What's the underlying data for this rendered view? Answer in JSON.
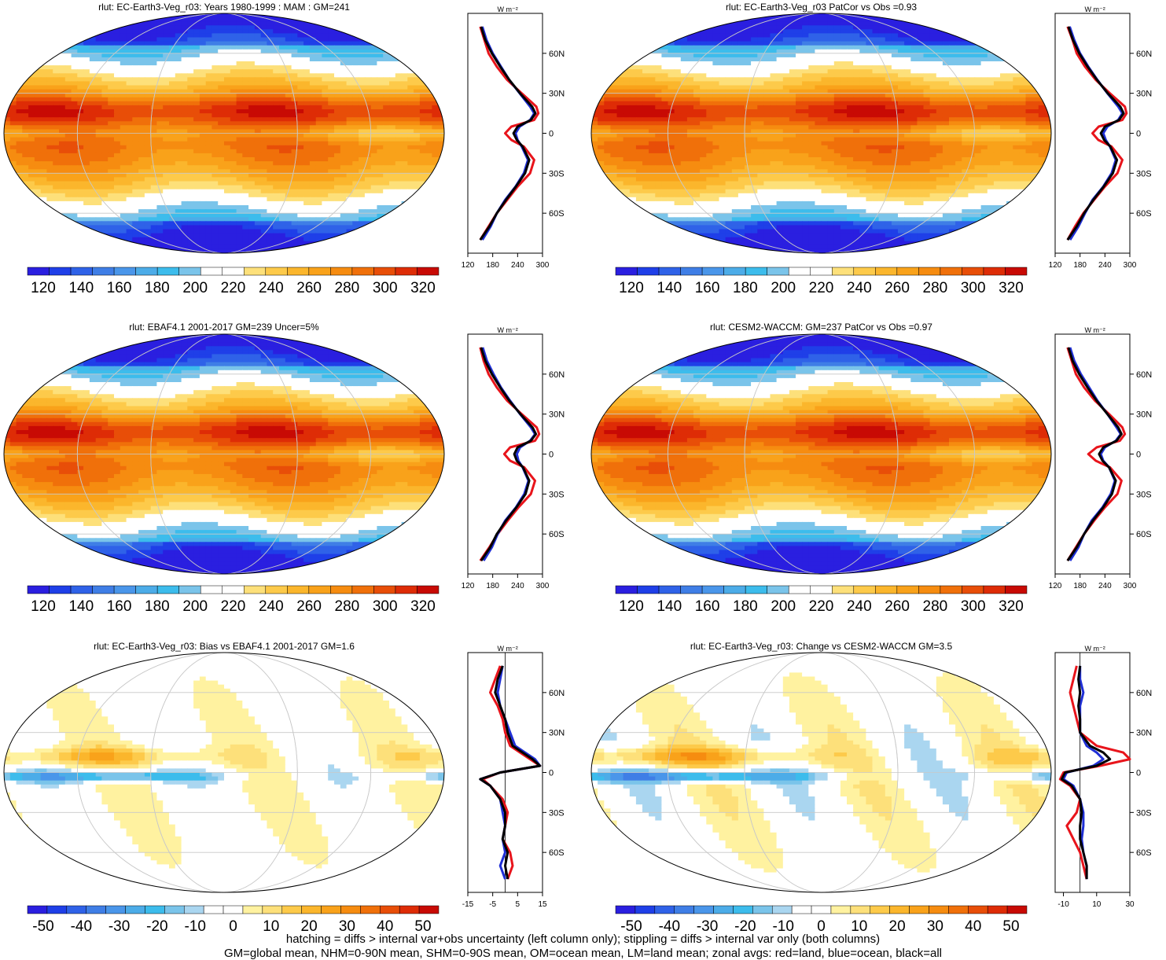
{
  "variable": "rlut",
  "unit": "W m⁻²",
  "footnotes": [
    "hatching = diffs > internal var+obs uncertainty (left column only); stippling = diffs > internal var only (both columns)",
    "GM=global mean, NHM=0-90N mean, SHM=0-90S mean, OM=ocean mean, LM=land mean; zonal avgs: red=land, blue=ocean, black=all"
  ],
  "colors": {
    "land": "#e8141b",
    "ocean": "#1f2fd6",
    "all": "#000000",
    "abs_scale": [
      "#2a1fe0",
      "#1f3fe8",
      "#2f62e8",
      "#3f7ee6",
      "#4a96ea",
      "#4cace8",
      "#3cbcec",
      "#7ac4ea",
      "#ffffff",
      "#ffffff",
      "#fde07a",
      "#fdca4a",
      "#fbb62c",
      "#f9a21a",
      "#f68c10",
      "#f0700a",
      "#e84e08",
      "#de2c06",
      "#c80a04"
    ],
    "diff_scale": [
      "#2a1fe0",
      "#1f3fe8",
      "#2f62e8",
      "#3f7ee6",
      "#4a96ea",
      "#4cace8",
      "#3cbcec",
      "#7ac4ea",
      "#aad6f0",
      "#ffffff",
      "#ffffff",
      "#fff2a0",
      "#fde07a",
      "#fdca4a",
      "#fbb62c",
      "#f9a21a",
      "#f68c10",
      "#f0700a",
      "#e84e08",
      "#de2c06",
      "#c80a04"
    ]
  },
  "chart_data": [
    {
      "type": "heatmap",
      "title": "rlut: EC-Earth3-Veg_r03: Years 1980-1999 : MAM : GM=241",
      "colorbar_ticks": [
        "120",
        "140",
        "160",
        "180",
        "200",
        "220",
        "240",
        "260",
        "280",
        "300",
        "320"
      ],
      "scale": "abs",
      "zonal": {
        "xlim": [
          120,
          300
        ],
        "xticks": [
          "120",
          "180",
          "240",
          "300"
        ],
        "ylabels": [
          "60N",
          "30N",
          "0",
          "30S",
          "60S"
        ],
        "lat": [
          80,
          70,
          60,
          50,
          40,
          30,
          20,
          15,
          10,
          5,
          0,
          -5,
          -10,
          -20,
          -30,
          -40,
          -50,
          -60,
          -70,
          -80
        ],
        "land": [
          150,
          160,
          170,
          190,
          215,
          250,
          285,
          290,
          280,
          225,
          210,
          225,
          255,
          280,
          270,
          240,
          215,
          190,
          170,
          150
        ],
        "ocean": [
          155,
          165,
          180,
          200,
          220,
          245,
          270,
          280,
          270,
          245,
          235,
          240,
          250,
          265,
          255,
          235,
          210,
          190,
          175,
          155
        ],
        "all": [
          152,
          162,
          178,
          198,
          220,
          246,
          275,
          283,
          272,
          240,
          230,
          238,
          252,
          268,
          258,
          236,
          212,
          190,
          172,
          150
        ]
      }
    },
    {
      "type": "heatmap",
      "title": "rlut: EC-Earth3-Veg_r03 PatCor vs Obs =0.93",
      "colorbar_ticks": [
        "120",
        "140",
        "160",
        "180",
        "200",
        "220",
        "240",
        "260",
        "280",
        "300",
        "320"
      ],
      "scale": "abs",
      "zonal": {
        "xlim": [
          120,
          300
        ],
        "xticks": [
          "120",
          "180",
          "240",
          "300"
        ],
        "ylabels": [
          "60N",
          "30N",
          "0",
          "30S",
          "60S"
        ],
        "lat": [
          80,
          70,
          60,
          50,
          40,
          30,
          20,
          15,
          10,
          5,
          0,
          -5,
          -10,
          -20,
          -30,
          -40,
          -50,
          -60,
          -70,
          -80
        ],
        "land": [
          150,
          162,
          172,
          192,
          218,
          252,
          288,
          292,
          282,
          225,
          210,
          224,
          256,
          282,
          270,
          240,
          214,
          188,
          168,
          150
        ],
        "ocean": [
          155,
          166,
          180,
          200,
          222,
          246,
          272,
          282,
          272,
          246,
          236,
          242,
          252,
          266,
          256,
          236,
          210,
          192,
          176,
          156
        ],
        "all": [
          152,
          163,
          178,
          198,
          221,
          247,
          277,
          285,
          274,
          240,
          230,
          238,
          253,
          269,
          259,
          237,
          212,
          190,
          172,
          150
        ]
      }
    },
    {
      "type": "heatmap",
      "title": "rlut: EBAF4.1 2001-2017 GM=239 Uncer=5%",
      "colorbar_ticks": [
        "120",
        "140",
        "160",
        "180",
        "200",
        "220",
        "240",
        "260",
        "280",
        "300",
        "320"
      ],
      "scale": "abs",
      "zonal": {
        "xlim": [
          120,
          300
        ],
        "xticks": [
          "120",
          "180",
          "240",
          "300"
        ],
        "ylabels": [
          "60N",
          "30N",
          "0",
          "30S",
          "60S"
        ],
        "lat": [
          80,
          70,
          60,
          50,
          40,
          30,
          20,
          15,
          10,
          5,
          0,
          -5,
          -10,
          -20,
          -30,
          -40,
          -50,
          -60,
          -70,
          -80
        ],
        "land": [
          150,
          158,
          170,
          190,
          215,
          250,
          286,
          292,
          282,
          222,
          208,
          222,
          256,
          282,
          272,
          242,
          216,
          192,
          172,
          150
        ],
        "ocean": [
          156,
          166,
          182,
          200,
          222,
          246,
          272,
          282,
          270,
          246,
          238,
          242,
          252,
          266,
          256,
          236,
          210,
          192,
          178,
          158
        ],
        "all": [
          152,
          162,
          178,
          198,
          220,
          247,
          276,
          284,
          272,
          240,
          232,
          238,
          253,
          268,
          259,
          237,
          212,
          190,
          174,
          152
        ]
      }
    },
    {
      "type": "heatmap",
      "title": "rlut: CESM2-WACCM: GM=237 PatCor vs Obs =0.97",
      "colorbar_ticks": [
        "120",
        "140",
        "160",
        "180",
        "200",
        "220",
        "240",
        "260",
        "280",
        "300",
        "320"
      ],
      "scale": "abs",
      "zonal": {
        "xlim": [
          120,
          300
        ],
        "xticks": [
          "120",
          "180",
          "240",
          "300"
        ],
        "ylabels": [
          "60N",
          "30N",
          "0",
          "30S",
          "60S"
        ],
        "lat": [
          80,
          70,
          60,
          50,
          40,
          30,
          20,
          15,
          10,
          5,
          0,
          -5,
          -10,
          -20,
          -30,
          -40,
          -50,
          -60,
          -70,
          -80
        ],
        "land": [
          150,
          160,
          170,
          190,
          216,
          250,
          282,
          288,
          276,
          220,
          200,
          218,
          252,
          280,
          270,
          240,
          214,
          190,
          170,
          150
        ],
        "ocean": [
          156,
          166,
          182,
          202,
          222,
          246,
          268,
          278,
          266,
          240,
          230,
          236,
          250,
          264,
          254,
          234,
          208,
          190,
          176,
          156
        ],
        "all": [
          152,
          162,
          178,
          198,
          220,
          246,
          272,
          280,
          268,
          236,
          226,
          234,
          250,
          266,
          257,
          236,
          211,
          190,
          172,
          150
        ]
      }
    },
    {
      "type": "heatmap",
      "title": "rlut: EC-Earth3-Veg_r03: Bias vs EBAF4.1 2001-2017 GM=1.6",
      "colorbar_ticks": [
        "-50",
        "-40",
        "-30",
        "-20",
        "-10",
        "0",
        "10",
        "20",
        "30",
        "40",
        "50"
      ],
      "scale": "diff",
      "zonal": {
        "xlim": [
          -15,
          15
        ],
        "xticks": [
          "-15",
          "-5",
          "5",
          "15"
        ],
        "ylabels": [
          "60N",
          "30N",
          "0",
          "30S",
          "60S"
        ],
        "lat": [
          80,
          70,
          60,
          50,
          40,
          30,
          20,
          15,
          10,
          5,
          0,
          -5,
          -10,
          -20,
          -30,
          -40,
          -50,
          -60,
          -70,
          -80
        ],
        "land": [
          -2,
          -4,
          -6,
          -3,
          -1,
          0,
          2,
          6,
          10,
          14,
          -2,
          -9,
          -6,
          -1,
          1,
          0,
          -1,
          2,
          3,
          1
        ],
        "ocean": [
          -1,
          -2,
          -3,
          -2,
          0,
          2,
          4,
          8,
          12,
          14,
          -2,
          -10,
          -6,
          -2,
          -1,
          0,
          -1,
          0,
          -2,
          0
        ],
        "all": [
          -1,
          -3,
          -4,
          -2,
          0,
          1,
          3,
          7,
          11,
          14,
          -2,
          -10,
          -6,
          -2,
          0,
          0,
          -1,
          1,
          0,
          1
        ]
      }
    },
    {
      "type": "heatmap",
      "title": "rlut: EC-Earth3-Veg_r03: Change vs CESM2-WACCM GM=3.5",
      "colorbar_ticks": [
        "-50",
        "-40",
        "-30",
        "-20",
        "-10",
        "0",
        "10",
        "20",
        "30",
        "40",
        "50"
      ],
      "scale": "diff",
      "zonal": {
        "xlim": [
          -15,
          30
        ],
        "xticks": [
          "-10",
          "10",
          "30"
        ],
        "ylabels": [
          "60N",
          "30N",
          "0",
          "30S",
          "60S"
        ],
        "lat": [
          80,
          70,
          60,
          50,
          40,
          30,
          20,
          15,
          10,
          5,
          0,
          -5,
          -10,
          -20,
          -30,
          -40,
          -50,
          -60,
          -70,
          -80
        ],
        "land": [
          -2,
          -4,
          -6,
          -4,
          -2,
          0,
          10,
          26,
          30,
          12,
          -10,
          -12,
          -6,
          0,
          -2,
          -8,
          -4,
          0,
          2,
          4
        ],
        "ocean": [
          0,
          0,
          2,
          0,
          0,
          0,
          4,
          10,
          14,
          8,
          -8,
          -10,
          -4,
          0,
          2,
          2,
          1,
          2,
          4,
          4
        ],
        "all": [
          0,
          -1,
          0,
          -1,
          0,
          0,
          6,
          14,
          18,
          10,
          -9,
          -11,
          -5,
          0,
          1,
          0,
          0,
          2,
          4,
          4
        ]
      }
    }
  ]
}
